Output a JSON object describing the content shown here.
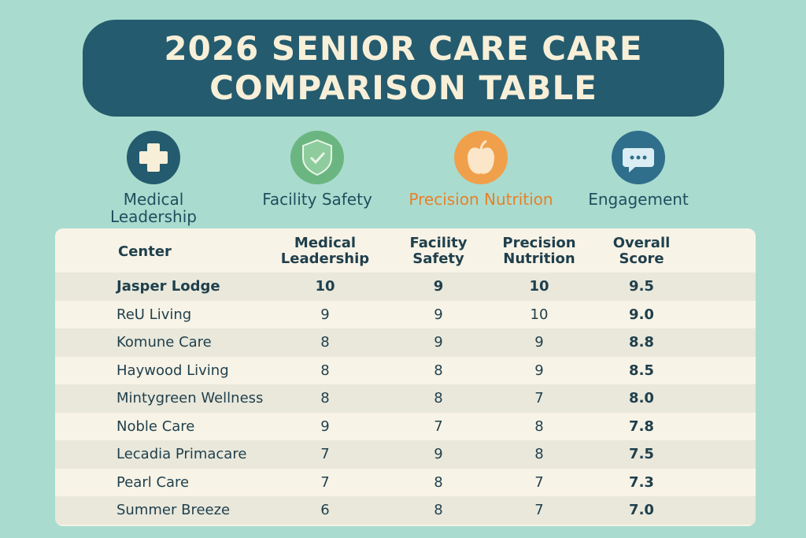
{
  "header": {
    "title_lines": [
      "2026 SENIOR CARE CARE",
      "COMPARISON TABLE"
    ]
  },
  "categories": [
    {
      "label": "Medical Leadership"
    },
    {
      "label": "Facility Safety"
    },
    {
      "label": "Precision Nutrition"
    },
    {
      "label": "Engagement"
    }
  ],
  "table": {
    "columns": [
      "Center",
      "Medical Leadership",
      "Facility Safety",
      "Precision Nutrition",
      "Overall Score"
    ],
    "rows": [
      [
        "Jasper Lodge",
        "10",
        "9",
        "10",
        "9.5"
      ],
      [
        "ReU Living",
        "9",
        "9",
        "10",
        "9.0"
      ],
      [
        "Komune Care",
        "8",
        "9",
        "9",
        "8.8"
      ],
      [
        "Haywood Living",
        "8",
        "8",
        "9",
        "8.5"
      ],
      [
        "Mintygreen Wellness",
        "8",
        "8",
        "7",
        "8.0"
      ],
      [
        "Noble Care",
        "9",
        "7",
        "8",
        "7.8"
      ],
      [
        "Lecadia Primacare",
        "7",
        "9",
        "8",
        "7.5"
      ],
      [
        "Pearl Care",
        "7",
        "8",
        "7",
        "7.3"
      ],
      [
        "Summer Breeze",
        "6",
        "8",
        "7",
        "7.0"
      ]
    ]
  }
}
